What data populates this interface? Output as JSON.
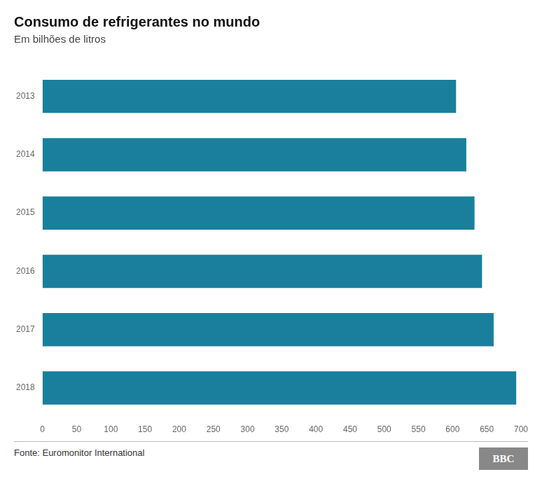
{
  "chart_data": {
    "type": "bar",
    "orientation": "horizontal",
    "title": "Consumo de refrigerantes no mundo",
    "subtitle": "Em bilhões de litros",
    "annotations": [
      "Fonte: Euromonitor International",
      "BBC"
    ],
    "categories": [
      "2013",
      "2014",
      "2015",
      "2016",
      "2017",
      "2018"
    ],
    "values": [
      605,
      620,
      632,
      643,
      660,
      693
    ],
    "color": "#1a7f9c",
    "xlim": [
      0,
      700
    ],
    "xticks": [
      0,
      50,
      100,
      150,
      200,
      250,
      300,
      350,
      400,
      450,
      500,
      550,
      600,
      650,
      700
    ],
    "grid": false
  }
}
